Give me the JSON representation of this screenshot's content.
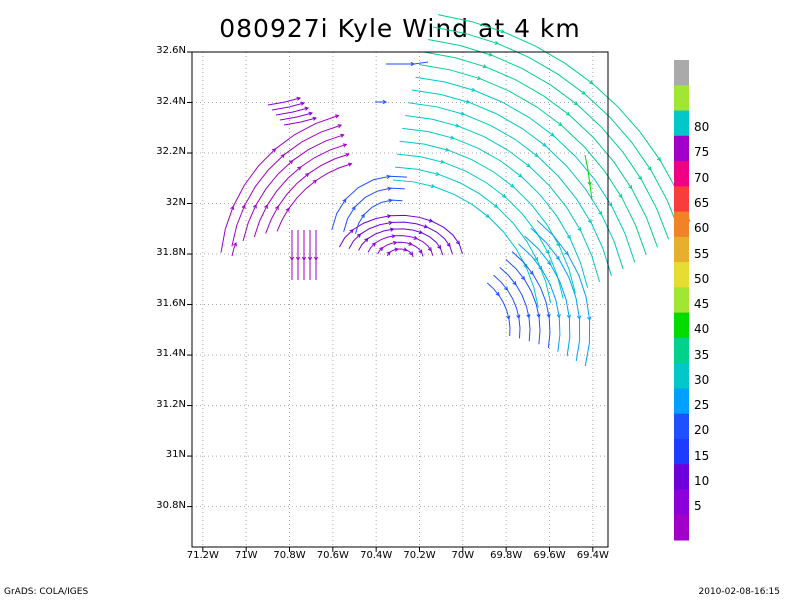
{
  "title": "080927i Kyle Wind at 4 km",
  "footer": {
    "left": "GrADS: COLA/IGES",
    "right": "2010-02-08-16:15"
  },
  "chart_data": {
    "type": "streamline_map",
    "x_axis": {
      "range": [
        -71.25,
        -69.33
      ],
      "ticks": [
        {
          "value": -71.2,
          "label": "71.2W"
        },
        {
          "value": -71.0,
          "label": "71W"
        },
        {
          "value": -70.8,
          "label": "70.8W"
        },
        {
          "value": -70.6,
          "label": "70.6W"
        },
        {
          "value": -70.4,
          "label": "70.4W"
        },
        {
          "value": -70.2,
          "label": "70.2W"
        },
        {
          "value": -70.0,
          "label": "70W"
        },
        {
          "value": -69.8,
          "label": "69.8W"
        },
        {
          "value": -69.6,
          "label": "69.6W"
        },
        {
          "value": -69.4,
          "label": "69.4W"
        }
      ]
    },
    "y_axis": {
      "range": [
        30.64,
        32.6
      ],
      "ticks": [
        {
          "value": 32.6,
          "label": "32.6N"
        },
        {
          "value": 32.4,
          "label": "32.4N"
        },
        {
          "value": 32.2,
          "label": "32.2N"
        },
        {
          "value": 32.0,
          "label": "32N"
        },
        {
          "value": 31.8,
          "label": "31.8N"
        },
        {
          "value": 31.6,
          "label": "31.6N"
        },
        {
          "value": 31.4,
          "label": "31.4N"
        },
        {
          "value": 31.2,
          "label": "31.2N"
        },
        {
          "value": 31.0,
          "label": "31N"
        },
        {
          "value": 30.8,
          "label": "30.8N"
        }
      ]
    },
    "grid": true,
    "colorbar": {
      "bins": [
        {
          "color": "#a000c8",
          "label": "5"
        },
        {
          "color": "#8c00dc",
          "label": ""
        },
        {
          "color": "#6e00dc",
          "label": "10"
        },
        {
          "color": "#1e3cff",
          "label": ""
        },
        {
          "color": "#1e50ff",
          "label": "15"
        },
        {
          "color": "#00a0ff",
          "label": ""
        },
        {
          "color": "#00c8c8",
          "label": "20"
        },
        {
          "color": "#00d28c",
          "label": ""
        },
        {
          "color": "#00dc00",
          "label": "25"
        },
        {
          "color": "#a0e632",
          "label": ""
        },
        {
          "color": "#e6dc32",
          "label": "30"
        },
        {
          "color": "#e6af2d",
          "label": ""
        },
        {
          "color": "#f08228",
          "label": "35"
        },
        {
          "color": "#fa3c3c",
          "label": ""
        },
        {
          "color": "#f00082",
          "label": "40"
        },
        {
          "color": "#a000c8",
          "label": ""
        },
        {
          "color": "#00c8c8",
          "label": "45"
        },
        {
          "color": "#a0e632",
          "label": ""
        },
        {
          "color": "#aaaaaa",
          "label": "50"
        }
      ],
      "labels": [
        "5",
        "10",
        "15",
        "20",
        "25",
        "30",
        "35",
        "40",
        "45",
        "50",
        "55",
        "60",
        "65",
        "70",
        "75",
        "80"
      ]
    }
  }
}
